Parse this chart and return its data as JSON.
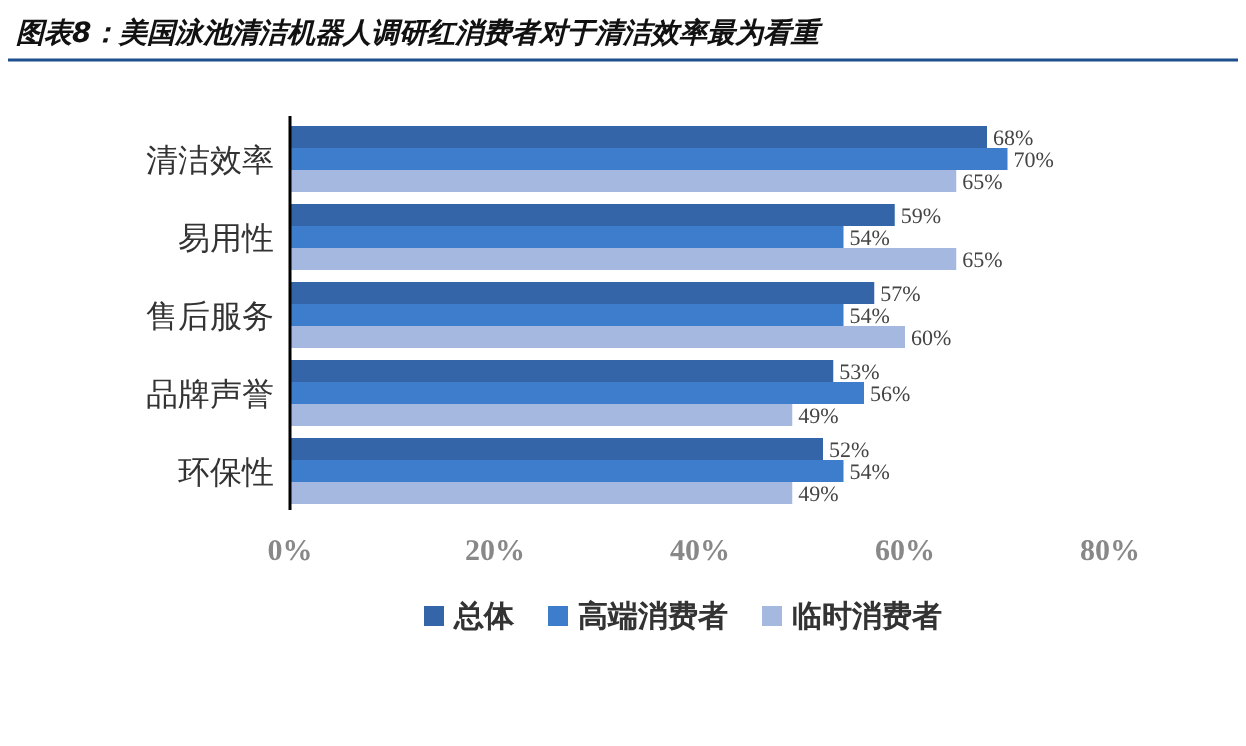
{
  "chart_data": {
    "type": "bar",
    "orientation": "horizontal",
    "title": "图表8：美国泳池清洁机器人调研红消费者对于清洁效率最为看重",
    "categories": [
      "清洁效率",
      "易用性",
      "售后服务",
      "品牌声誉",
      "环保性"
    ],
    "series": [
      {
        "name": "总体",
        "color": "#3465a8",
        "values": [
          68,
          59,
          57,
          53,
          52
        ],
        "value_labels": [
          "68%",
          "59%",
          "57%",
          "53%",
          "52%"
        ]
      },
      {
        "name": "高端消费者",
        "color": "#3d7dcc",
        "values": [
          70,
          54,
          54,
          56,
          54
        ],
        "value_labels": [
          "70%",
          "54%",
          "54%",
          "56%",
          "54%"
        ]
      },
      {
        "name": "临时消费者",
        "color": "#a5b9e0",
        "values": [
          65,
          65,
          60,
          49,
          49
        ],
        "value_labels": [
          "65%",
          "65%",
          "60%",
          "49%",
          "49%"
        ]
      }
    ],
    "xlim": [
      0,
      80
    ],
    "xticks": [
      {
        "value": 0,
        "label": "0%"
      },
      {
        "value": 20,
        "label": "20%"
      },
      {
        "value": 40,
        "label": "40%"
      },
      {
        "value": 60,
        "label": "60%"
      },
      {
        "value": 80,
        "label": "80%"
      }
    ],
    "grid": false,
    "legend": "bottom"
  }
}
